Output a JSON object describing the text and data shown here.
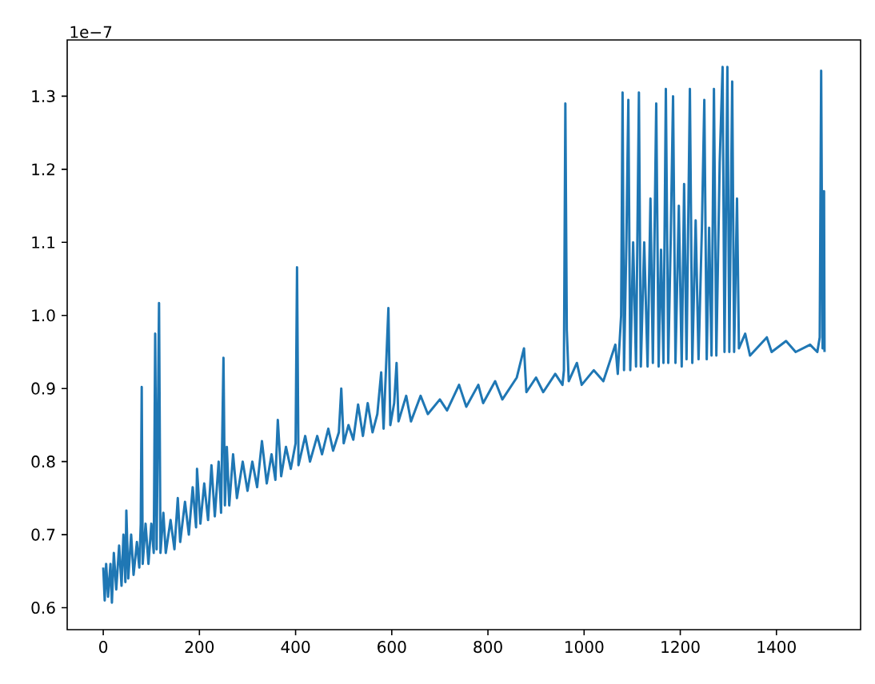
{
  "chart_data": {
    "type": "line",
    "annotations": [
      "1e−7"
    ],
    "xlim": [
      -75,
      1575
    ],
    "ylim": [
      0.57,
      1.377
    ],
    "xticks": [
      0,
      200,
      400,
      600,
      800,
      1000,
      1200,
      1400
    ],
    "yticks": [
      0.6,
      0.7,
      0.8,
      0.9,
      {
        "value": 1.0,
        "label": "1.0"
      },
      1.1,
      1.2,
      1.3
    ],
    "series": [
      {
        "color": "#1f77b4",
        "x": [
          0,
          3,
          6,
          10,
          15,
          18,
          22,
          27,
          33,
          38,
          42,
          46,
          48,
          52,
          58,
          63,
          70,
          75,
          78,
          80,
          82,
          88,
          94,
          100,
          105,
          108,
          111,
          116,
          119,
          125,
          130,
          140,
          148,
          155,
          160,
          170,
          178,
          186,
          193,
          195,
          202,
          210,
          218,
          225,
          232,
          240,
          245,
          250,
          253,
          257,
          262,
          270,
          278,
          290,
          300,
          310,
          320,
          330,
          340,
          350,
          358,
          363,
          370,
          380,
          390,
          400,
          403,
          406,
          420,
          430,
          445,
          455,
          468,
          478,
          490,
          495,
          500,
          510,
          520,
          530,
          540,
          550,
          560,
          570,
          578,
          583,
          593,
          597,
          605,
          610,
          614,
          630,
          640,
          660,
          675,
          700,
          715,
          740,
          755,
          780,
          790,
          815,
          830,
          860,
          875,
          880,
          900,
          915,
          940,
          955,
          958,
          961,
          964,
          968,
          985,
          995,
          1020,
          1040,
          1065,
          1070,
          1077,
          1080,
          1083,
          1088,
          1092,
          1096,
          1102,
          1108,
          1114,
          1118,
          1125,
          1132,
          1138,
          1143,
          1150,
          1155,
          1160,
          1165,
          1170,
          1175,
          1180,
          1185,
          1190,
          1197,
          1203,
          1208,
          1213,
          1220,
          1225,
          1232,
          1238,
          1245,
          1250,
          1255,
          1260,
          1265,
          1270,
          1275,
          1282,
          1288,
          1292,
          1298,
          1302,
          1308,
          1312,
          1318,
          1322,
          1335,
          1345,
          1380,
          1390,
          1420,
          1440,
          1470,
          1485,
          1490,
          1493,
          1496,
          1499,
          1500
        ],
        "values": [
          0.655,
          0.61,
          0.66,
          0.615,
          0.66,
          0.607,
          0.675,
          0.625,
          0.685,
          0.63,
          0.7,
          0.635,
          0.733,
          0.64,
          0.7,
          0.645,
          0.69,
          0.655,
          0.715,
          0.902,
          0.66,
          0.715,
          0.66,
          0.715,
          0.675,
          0.975,
          0.68,
          1.017,
          0.675,
          0.73,
          0.675,
          0.72,
          0.68,
          0.75,
          0.69,
          0.745,
          0.7,
          0.765,
          0.71,
          0.79,
          0.715,
          0.77,
          0.72,
          0.795,
          0.725,
          0.8,
          0.73,
          0.942,
          0.74,
          0.82,
          0.74,
          0.81,
          0.75,
          0.8,
          0.76,
          0.8,
          0.765,
          0.828,
          0.77,
          0.81,
          0.775,
          0.857,
          0.78,
          0.82,
          0.79,
          0.825,
          1.066,
          0.795,
          0.835,
          0.8,
          0.835,
          0.81,
          0.845,
          0.815,
          0.84,
          0.9,
          0.825,
          0.85,
          0.83,
          0.878,
          0.835,
          0.88,
          0.84,
          0.865,
          0.922,
          0.845,
          1.01,
          0.85,
          0.88,
          0.935,
          0.855,
          0.89,
          0.855,
          0.89,
          0.865,
          0.885,
          0.87,
          0.905,
          0.875,
          0.905,
          0.88,
          0.91,
          0.885,
          0.915,
          0.955,
          0.895,
          0.915,
          0.895,
          0.92,
          0.905,
          0.925,
          1.29,
          0.98,
          0.91,
          0.935,
          0.905,
          0.925,
          0.91,
          0.96,
          0.92,
          1.0,
          1.305,
          0.925,
          1.105,
          1.295,
          0.925,
          1.1,
          0.93,
          1.305,
          0.93,
          1.1,
          0.93,
          1.16,
          0.935,
          1.29,
          0.93,
          1.09,
          0.935,
          1.31,
          0.935,
          1.1,
          1.3,
          0.935,
          1.15,
          0.93,
          1.18,
          0.94,
          1.31,
          0.935,
          1.13,
          0.94,
          1.12,
          1.295,
          0.94,
          1.12,
          0.945,
          1.31,
          0.945,
          1.21,
          1.34,
          0.95,
          1.34,
          0.95,
          1.32,
          0.95,
          1.16,
          0.955,
          0.975,
          0.945,
          0.97,
          0.95,
          0.965,
          0.95,
          0.96,
          0.95,
          0.97,
          1.335,
          0.955,
          1.17,
          0.95
        ]
      }
    ]
  }
}
